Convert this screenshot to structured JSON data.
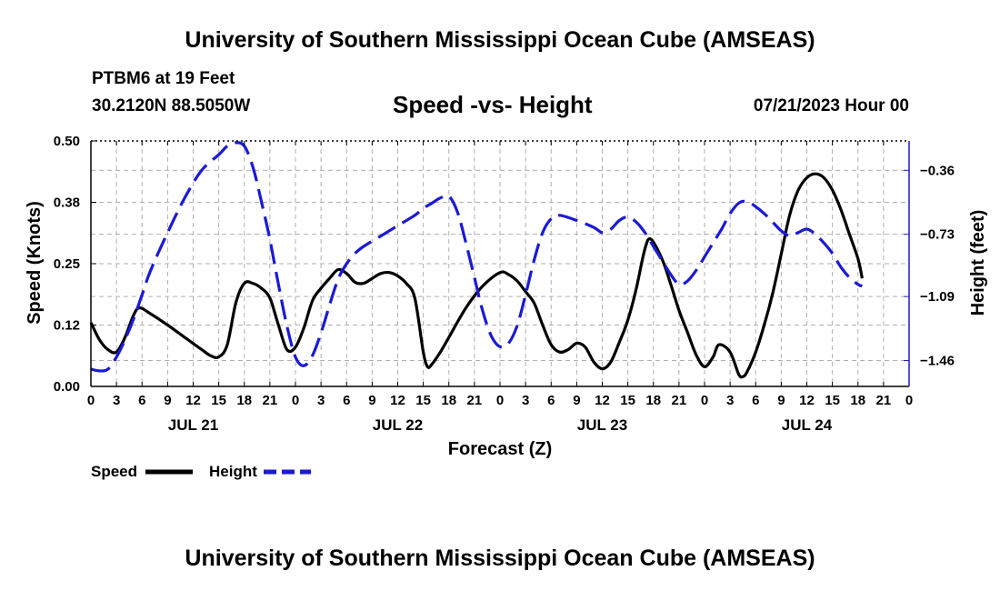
{
  "page": {
    "title_top": "University of Southern Mississippi Ocean Cube (AMSEAS)",
    "title_bottom": "University of Southern Mississippi Ocean Cube (AMSEAS)",
    "station": "PTBM6 at 19 Feet",
    "coords": "30.2120N  88.5050W",
    "date": "07/21/2023 Hour 00"
  },
  "chart_data": {
    "type": "line",
    "title": "Speed -vs- Height",
    "xlabel": "Forecast (Z)",
    "ylabel": "Speed (Knots)",
    "y2label": "Height (feet)",
    "ylim": [
      0,
      0.5
    ],
    "y2lim": [
      -1.61,
      -0.19
    ],
    "x_hours_range": [
      0,
      96
    ],
    "grid": true,
    "yticks": [
      {
        "v": 0,
        "label": "0.00"
      },
      {
        "v": 0.125,
        "label": "0.12"
      },
      {
        "v": 0.25,
        "label": "0.25"
      },
      {
        "v": 0.375,
        "label": "0.38"
      },
      {
        "v": 0.5,
        "label": "0.50"
      }
    ],
    "y2ticks": [
      {
        "v": -0.36,
        "label": "−0.36"
      },
      {
        "v": -0.73,
        "label": "−0.73"
      },
      {
        "v": -1.09,
        "label": "−1.09"
      },
      {
        "v": -1.46,
        "label": "−1.46"
      }
    ],
    "xtick_labels": [
      "0",
      "3",
      "6",
      "9",
      "12",
      "15",
      "18",
      "21",
      "0",
      "3",
      "6",
      "9",
      "12",
      "15",
      "18",
      "21",
      "0",
      "3",
      "6",
      "9",
      "12",
      "15",
      "18",
      "21",
      "0",
      "3",
      "6",
      "9",
      "12",
      "15",
      "18",
      "21",
      "0"
    ],
    "day_labels": [
      {
        "label": "JUL 21",
        "hour": 12
      },
      {
        "label": "JUL 22",
        "hour": 36
      },
      {
        "label": "JUL 23",
        "hour": 60
      },
      {
        "label": "JUL 24",
        "hour": 84
      }
    ],
    "series": [
      {
        "name": "Speed",
        "axis": "left",
        "color": "#000000",
        "dashed": false,
        "points": [
          [
            0,
            0.13
          ],
          [
            1,
            0.095
          ],
          [
            2,
            0.075
          ],
          [
            3,
            0.07
          ],
          [
            4,
            0.1
          ],
          [
            5,
            0.145
          ],
          [
            5.7,
            0.16
          ],
          [
            7,
            0.148
          ],
          [
            9,
            0.125
          ],
          [
            11,
            0.1
          ],
          [
            13,
            0.075
          ],
          [
            14,
            0.063
          ],
          [
            15,
            0.06
          ],
          [
            16,
            0.085
          ],
          [
            17,
            0.17
          ],
          [
            18,
            0.21
          ],
          [
            19,
            0.21
          ],
          [
            20,
            0.2
          ],
          [
            21,
            0.18
          ],
          [
            22,
            0.125
          ],
          [
            23,
            0.075
          ],
          [
            24,
            0.08
          ],
          [
            25,
            0.12
          ],
          [
            26,
            0.175
          ],
          [
            27,
            0.2
          ],
          [
            28,
            0.22
          ],
          [
            29,
            0.238
          ],
          [
            30,
            0.23
          ],
          [
            31,
            0.212
          ],
          [
            32,
            0.21
          ],
          [
            33,
            0.22
          ],
          [
            34,
            0.23
          ],
          [
            35,
            0.232
          ],
          [
            36,
            0.225
          ],
          [
            37,
            0.21
          ],
          [
            38,
            0.18
          ],
          [
            39,
            0.07
          ],
          [
            39.5,
            0.04
          ],
          [
            40,
            0.045
          ],
          [
            41,
            0.07
          ],
          [
            42,
            0.1
          ],
          [
            44,
            0.16
          ],
          [
            46,
            0.205
          ],
          [
            48,
            0.232
          ],
          [
            49,
            0.228
          ],
          [
            50,
            0.215
          ],
          [
            51,
            0.193
          ],
          [
            52,
            0.17
          ],
          [
            53,
            0.125
          ],
          [
            54,
            0.085
          ],
          [
            55,
            0.07
          ],
          [
            56,
            0.075
          ],
          [
            57,
            0.088
          ],
          [
            58,
            0.08
          ],
          [
            59,
            0.05
          ],
          [
            60,
            0.036
          ],
          [
            61,
            0.05
          ],
          [
            62,
            0.09
          ],
          [
            63,
            0.135
          ],
          [
            64,
            0.2
          ],
          [
            65,
            0.28
          ],
          [
            65.7,
            0.3
          ],
          [
            67,
            0.26
          ],
          [
            68,
            0.21
          ],
          [
            69,
            0.155
          ],
          [
            70,
            0.11
          ],
          [
            71,
            0.065
          ],
          [
            72,
            0.04
          ],
          [
            73,
            0.06
          ],
          [
            73.7,
            0.085
          ],
          [
            75,
            0.07
          ],
          [
            76,
            0.025
          ],
          [
            76.5,
            0.02
          ],
          [
            77,
            0.03
          ],
          [
            78,
            0.07
          ],
          [
            79,
            0.125
          ],
          [
            80,
            0.19
          ],
          [
            81,
            0.27
          ],
          [
            82,
            0.35
          ],
          [
            83,
            0.4
          ],
          [
            84,
            0.425
          ],
          [
            85,
            0.433
          ],
          [
            86,
            0.425
          ],
          [
            87,
            0.4
          ],
          [
            88,
            0.36
          ],
          [
            89,
            0.31
          ],
          [
            90,
            0.26
          ],
          [
            90.5,
            0.22
          ]
        ]
      },
      {
        "name": "Height",
        "axis": "right",
        "color": "#1a1ad4",
        "dashed": true,
        "points": [
          [
            0,
            -1.51
          ],
          [
            1,
            -1.52
          ],
          [
            2,
            -1.51
          ],
          [
            3,
            -1.44
          ],
          [
            4,
            -1.34
          ],
          [
            5,
            -1.22
          ],
          [
            6,
            -1.08
          ],
          [
            7,
            -0.94
          ],
          [
            9,
            -0.72
          ],
          [
            11,
            -0.52
          ],
          [
            13,
            -0.36
          ],
          [
            15,
            -0.27
          ],
          [
            16,
            -0.22
          ],
          [
            17,
            -0.2
          ],
          [
            18,
            -0.22
          ],
          [
            19,
            -0.34
          ],
          [
            20,
            -0.54
          ],
          [
            21,
            -0.76
          ],
          [
            22,
            -1.02
          ],
          [
            23,
            -1.26
          ],
          [
            24,
            -1.44
          ],
          [
            25,
            -1.49
          ],
          [
            26,
            -1.43
          ],
          [
            27,
            -1.3
          ],
          [
            28,
            -1.14
          ],
          [
            29,
            -0.99
          ],
          [
            30,
            -0.9
          ],
          [
            31,
            -0.84
          ],
          [
            32,
            -0.8
          ],
          [
            34,
            -0.74
          ],
          [
            36,
            -0.68
          ],
          [
            38,
            -0.62
          ],
          [
            39,
            -0.58
          ],
          [
            40,
            -0.55
          ],
          [
            41,
            -0.52
          ],
          [
            42,
            -0.51
          ],
          [
            43,
            -0.6
          ],
          [
            44,
            -0.78
          ],
          [
            45,
            -0.98
          ],
          [
            46,
            -1.18
          ],
          [
            47,
            -1.32
          ],
          [
            48,
            -1.38
          ],
          [
            49,
            -1.36
          ],
          [
            50,
            -1.26
          ],
          [
            51,
            -1.08
          ],
          [
            52,
            -0.88
          ],
          [
            53,
            -0.72
          ],
          [
            54,
            -0.64
          ],
          [
            55,
            -0.62
          ],
          [
            57,
            -0.65
          ],
          [
            59,
            -0.69
          ],
          [
            60,
            -0.72
          ],
          [
            61,
            -0.7
          ],
          [
            62,
            -0.65
          ],
          [
            63,
            -0.63
          ],
          [
            64,
            -0.66
          ],
          [
            65,
            -0.72
          ],
          [
            66,
            -0.8
          ],
          [
            67,
            -0.88
          ],
          [
            68,
            -0.96
          ],
          [
            69,
            -1.02
          ],
          [
            70,
            -1.0
          ],
          [
            71,
            -0.94
          ],
          [
            72,
            -0.86
          ],
          [
            73,
            -0.78
          ],
          [
            74,
            -0.7
          ],
          [
            75,
            -0.61
          ],
          [
            76,
            -0.55
          ],
          [
            77,
            -0.54
          ],
          [
            78,
            -0.57
          ],
          [
            79,
            -0.61
          ],
          [
            80,
            -0.66
          ],
          [
            81,
            -0.71
          ],
          [
            82,
            -0.74
          ],
          [
            83,
            -0.72
          ],
          [
            84,
            -0.7
          ],
          [
            85,
            -0.73
          ],
          [
            86,
            -0.78
          ],
          [
            87,
            -0.84
          ],
          [
            88,
            -0.92
          ],
          [
            89,
            -0.98
          ],
          [
            90,
            -1.02
          ],
          [
            90.5,
            -1.03
          ]
        ]
      }
    ]
  }
}
